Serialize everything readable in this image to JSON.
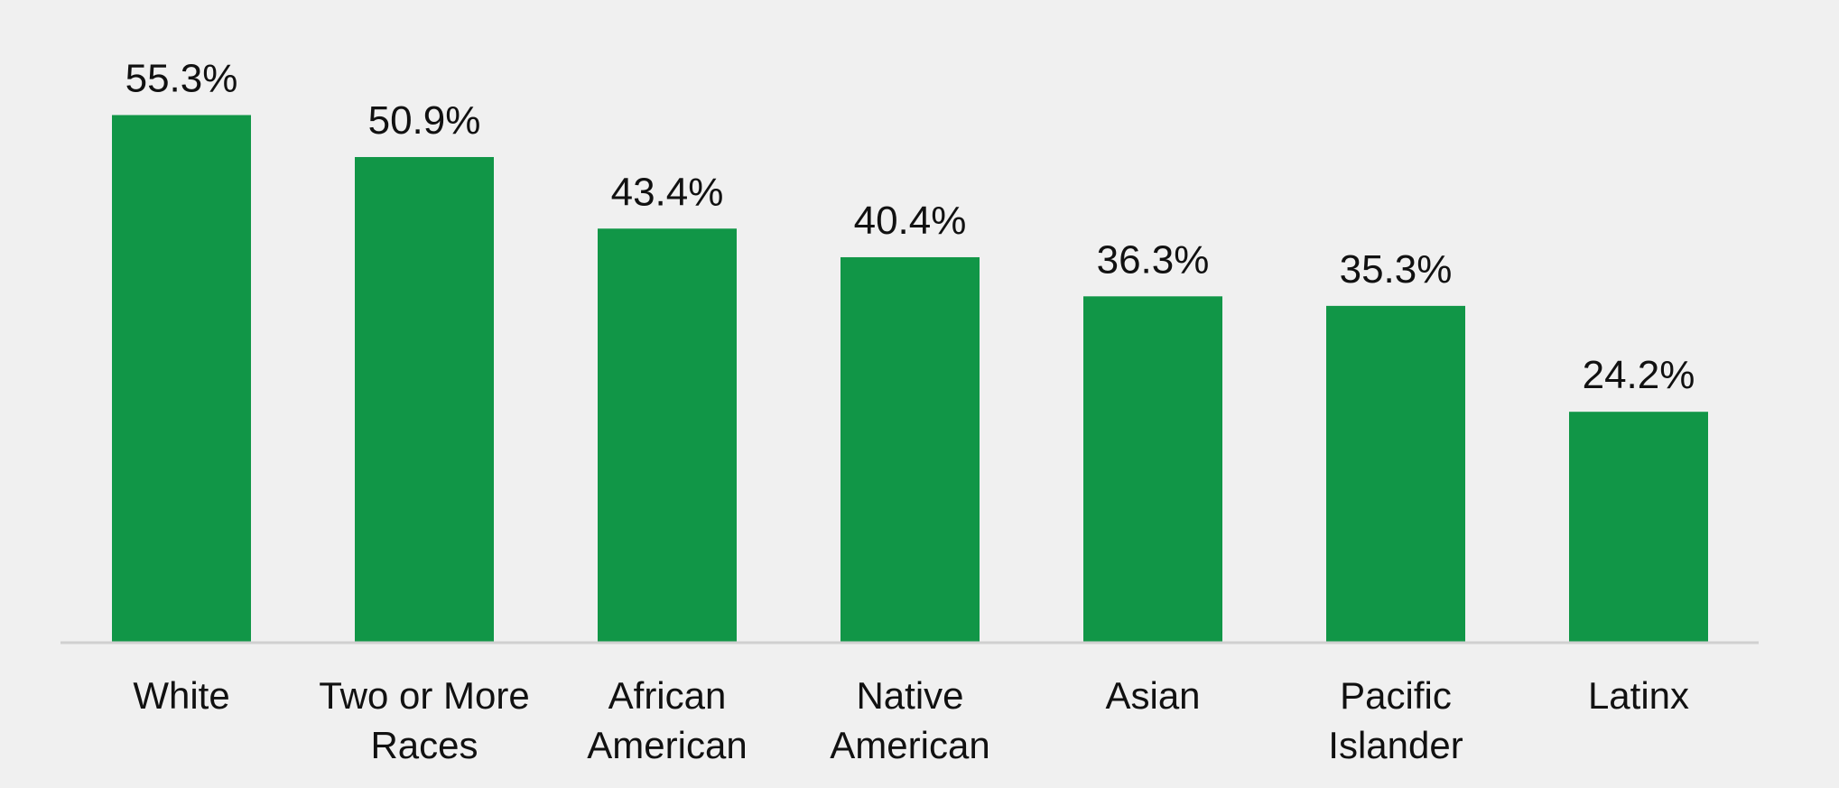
{
  "chart_data": {
    "type": "bar",
    "categories": [
      [
        "White"
      ],
      [
        "Two or More",
        "Races"
      ],
      [
        "African",
        "American"
      ],
      [
        "Native",
        "American"
      ],
      [
        "Asian"
      ],
      [
        "Pacific",
        "Islander"
      ],
      [
        "Latinx"
      ]
    ],
    "values": [
      55.3,
      50.9,
      43.4,
      40.4,
      36.3,
      35.3,
      24.2
    ],
    "data_labels": [
      "55.3%",
      "50.9%",
      "43.4%",
      "40.4%",
      "36.3%",
      "35.3%",
      "24.2%"
    ],
    "ylim": [
      0,
      65
    ],
    "grid": false,
    "legend": "none",
    "title": "",
    "xlabel": "",
    "ylabel": "",
    "colors": {
      "bar": "#119647",
      "baseline": "#d0d0d0",
      "background": "#f0f0f0",
      "text": "#111111"
    }
  }
}
